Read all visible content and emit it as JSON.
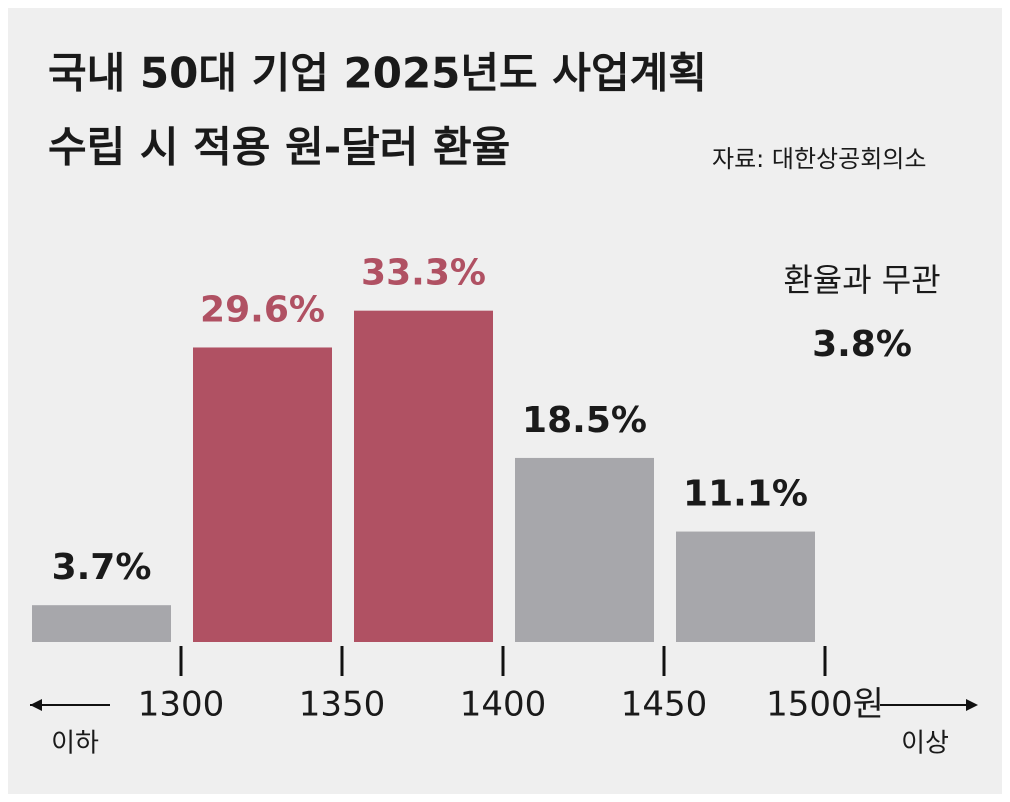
{
  "chart_data": {
    "type": "bar",
    "title": [
      "국내 50대 기업 2025년도 사업계획",
      "수립 시 적용 원-달러 환율"
    ],
    "source": "자료: 대한상공회의소",
    "categories": [
      null,
      null,
      null,
      null,
      null
    ],
    "values": [
      3.7,
      29.6,
      33.3,
      18.5,
      11.1
    ],
    "value_labels": [
      "3.7%",
      "29.6%",
      "33.3%",
      "18.5%",
      "11.1%"
    ],
    "colors": [
      "#a7a7ab",
      "#b05163",
      "#b05163",
      "#a7a7ab",
      "#a7a7ab"
    ],
    "xticks": [
      1300,
      1350,
      1400,
      1450,
      {
        "value": 1500,
        "label": "1500원"
      }
    ],
    "left_label": "이하",
    "right_label": "이상",
    "annotation": {
      "label": "환율과 무관",
      "value": 3.8,
      "value_label": "3.8%"
    }
  }
}
